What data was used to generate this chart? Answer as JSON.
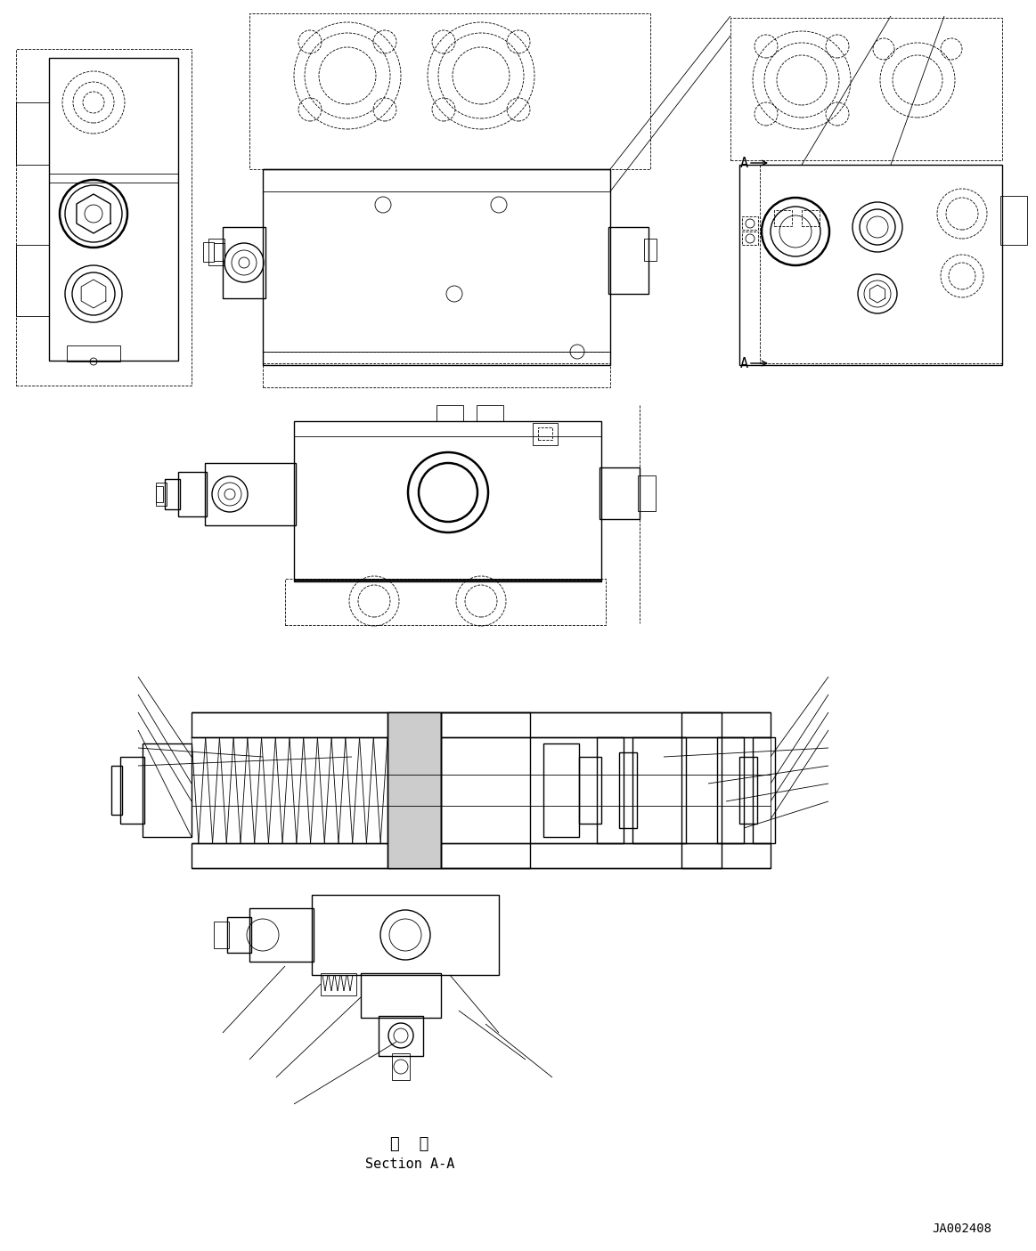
{
  "background_color": "#ffffff",
  "line_color": "#000000",
  "fig_width": 11.63,
  "fig_height": 14.05,
  "section_label_chinese": "断  面",
  "section_label_english": "Section A-A",
  "drawing_number": "JA002408",
  "lw_thin": 0.6,
  "lw_med": 1.0,
  "lw_thick": 1.8
}
